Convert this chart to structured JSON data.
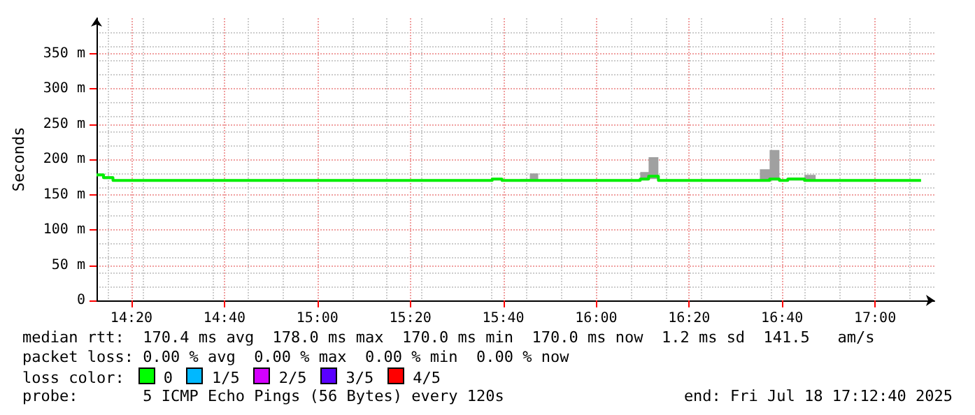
{
  "chart_data": {
    "type": "step",
    "ylabel": "Seconds",
    "x": [
      14.208,
      14.233,
      14.267,
      15.627,
      15.662,
      15.727,
      15.762,
      15.792,
      16.158,
      16.188,
      16.223,
      16.587,
      16.622,
      16.657,
      16.687,
      16.747,
      16.787,
      17.165
    ],
    "series": [
      {
        "color": "#00ee00",
        "values": [
          178,
          174,
          170,
          172,
          170,
          170,
          170,
          170,
          172,
          176,
          170,
          170,
          172,
          170,
          172,
          170,
          170,
          170
        ],
        "lower": [
          176,
          172,
          170,
          170,
          170,
          170,
          170,
          170,
          170,
          172,
          170,
          170,
          170,
          170,
          170,
          170,
          170,
          170
        ],
        "upper": [
          178,
          176,
          170,
          172,
          170,
          172,
          180,
          170,
          182,
          203,
          170,
          186,
          213,
          170,
          174,
          178,
          170,
          170
        ]
      }
    ],
    "xlim": [
      14.208,
      17.213
    ],
    "xticks": [
      {
        "value": 14.3333,
        "label": "14:20"
      },
      {
        "value": 14.6667,
        "label": "14:40"
      },
      {
        "value": 15,
        "label": "15:00"
      },
      {
        "value": 15.3333,
        "label": "15:20"
      },
      {
        "value": 15.6667,
        "label": "15:40"
      },
      {
        "value": 16,
        "label": "16:00"
      },
      {
        "value": 16.3333,
        "label": "16:20"
      },
      {
        "value": 16.6667,
        "label": "16:40"
      },
      {
        "value": 17,
        "label": "17:00"
      }
    ],
    "ylim": [
      0,
      400
    ],
    "yticks": [
      0,
      {
        "value": 50,
        "label": "50 m"
      },
      {
        "value": 100,
        "label": "100 m"
      },
      {
        "value": 150,
        "label": "150 m"
      },
      {
        "value": 200,
        "label": "200 m"
      },
      {
        "value": 250,
        "label": "250 m"
      },
      {
        "value": 300,
        "label": "300 m"
      },
      {
        "value": 350,
        "label": "350 m"
      }
    ],
    "grid": true,
    "annotations": [
      "median rtt:  170.4 ms avg  178.0 ms max  170.0 ms min  170.0 ms now  1.2 ms sd  141.5   am/s",
      "packet loss: 0.00 % avg  0.00 % max  0.00 % min  0.00 % now",
      "loss color:",
      "0",
      "1/5",
      "2/5",
      "3/5",
      "4/5",
      "probe:       5 ICMP Echo Pings (56 Bytes) every 120s",
      "end: Fri Jul 18 17:12:40 2025"
    ]
  }
}
